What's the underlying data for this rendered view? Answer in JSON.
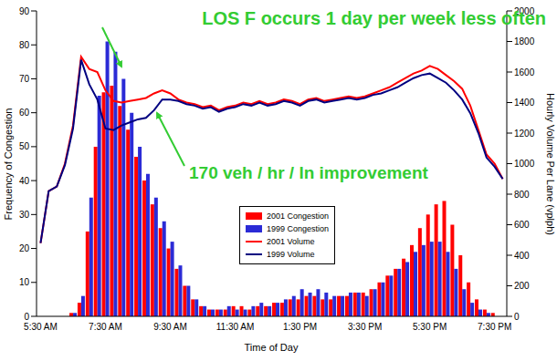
{
  "chart_data": {
    "type": "bar",
    "x_label": "Time of Day",
    "y_label": "Frequency of Congestion",
    "y2_label": "Hourly Volume Per Lane (vplph)",
    "annotations": [
      "LOS F occurs 1 day per week less often",
      "170 veh / hr / ln improvement"
    ],
    "categories": [
      "5:30 AM",
      null,
      null,
      null,
      null,
      null,
      null,
      null,
      "7:30 AM",
      null,
      null,
      null,
      null,
      null,
      null,
      null,
      "9:30 AM",
      null,
      null,
      null,
      null,
      null,
      null,
      null,
      "11:30 AM",
      null,
      null,
      null,
      null,
      null,
      null,
      null,
      "1:30 PM",
      null,
      null,
      null,
      null,
      null,
      null,
      null,
      "3:30 PM",
      null,
      null,
      null,
      null,
      null,
      null,
      null,
      "5:30 PM",
      null,
      null,
      null,
      null,
      null,
      null,
      null,
      "7:30 PM",
      null
    ],
    "series": [
      {
        "name": "2001 Congestion",
        "type": "bar",
        "color": "#ff0000",
        "values": [
          0,
          0,
          0,
          0,
          1,
          4,
          25,
          50,
          66,
          68,
          62,
          55,
          47,
          40,
          33,
          26,
          20,
          14,
          9,
          5,
          3,
          2,
          2,
          2,
          3,
          3,
          2,
          3,
          3,
          4,
          4,
          5,
          5,
          6,
          6,
          5,
          5,
          6,
          6,
          7,
          7,
          8,
          10,
          12,
          14,
          17,
          21,
          26,
          30,
          33,
          34,
          27,
          18,
          10,
          5,
          2,
          1,
          0
        ]
      },
      {
        "name": "1999 Congestion",
        "type": "bar",
        "color": "#2b2bd6",
        "values": [
          0,
          0,
          0,
          0,
          1,
          6,
          35,
          65,
          81,
          78,
          70,
          60,
          50,
          42,
          35,
          28,
          22,
          15,
          9,
          5,
          3,
          2,
          2,
          3,
          2,
          2,
          3,
          4,
          3,
          4,
          5,
          6,
          8,
          7,
          8,
          7,
          6,
          6,
          7,
          7,
          6,
          8,
          10,
          12,
          14,
          16,
          19,
          21,
          22,
          22,
          19,
          14,
          8,
          4,
          2,
          1,
          0,
          0
        ]
      },
      {
        "name": "2001 Volume",
        "type": "line",
        "axis": "y2",
        "color": "#ff0000",
        "values": [
          480,
          820,
          850,
          1000,
          1250,
          1700,
          1620,
          1600,
          1480,
          1410,
          1400,
          1410,
          1420,
          1430,
          1460,
          1480,
          1460,
          1420,
          1400,
          1390,
          1370,
          1380,
          1350,
          1370,
          1380,
          1400,
          1390,
          1410,
          1390,
          1400,
          1420,
          1410,
          1390,
          1420,
          1430,
          1410,
          1420,
          1430,
          1440,
          1430,
          1440,
          1460,
          1480,
          1500,
          1530,
          1560,
          1590,
          1610,
          1640,
          1620,
          1580,
          1540,
          1490,
          1380,
          1220,
          1060,
          1000,
          900
        ]
      },
      {
        "name": "1999 Volume",
        "type": "line",
        "axis": "y2",
        "color": "#000080",
        "values": [
          480,
          820,
          850,
          990,
          1230,
          1680,
          1520,
          1420,
          1230,
          1220,
          1250,
          1270,
          1290,
          1300,
          1350,
          1420,
          1420,
          1410,
          1390,
          1380,
          1360,
          1370,
          1340,
          1360,
          1370,
          1390,
          1380,
          1400,
          1380,
          1390,
          1410,
          1400,
          1380,
          1410,
          1420,
          1400,
          1410,
          1420,
          1430,
          1420,
          1430,
          1450,
          1460,
          1480,
          1500,
          1530,
          1560,
          1580,
          1590,
          1560,
          1530,
          1480,
          1420,
          1330,
          1200,
          1040,
          980,
          900
        ]
      }
    ],
    "ylim": [
      0,
      90
    ],
    "yticks": [
      0,
      10,
      20,
      30,
      40,
      50,
      60,
      70,
      80,
      90
    ],
    "y2lim": [
      0,
      2000
    ],
    "y2ticks": [
      0,
      200,
      400,
      600,
      800,
      1000,
      1200,
      1400,
      1600,
      1800,
      2000
    ],
    "grid": false,
    "legend": "center"
  }
}
